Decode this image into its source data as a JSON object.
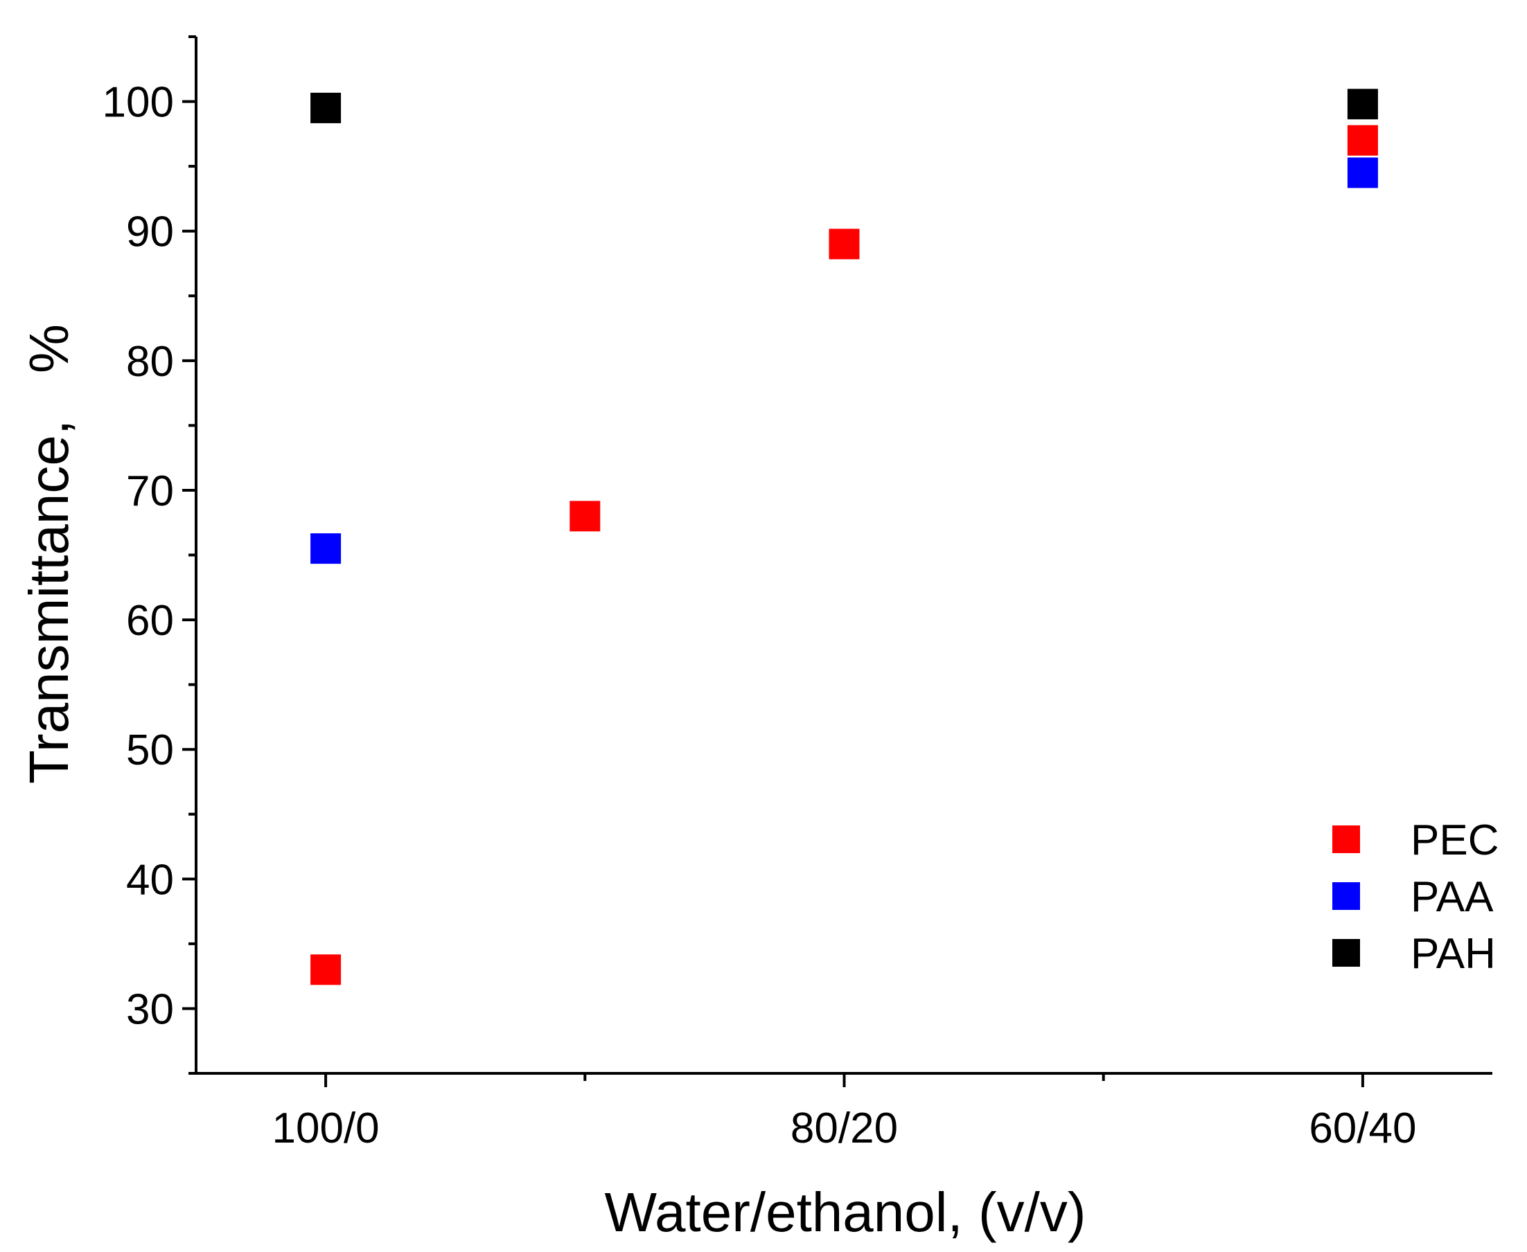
{
  "chart_data": {
    "type": "scatter",
    "title": "",
    "xlabel": "Water/ethanol, (v/v)",
    "ylabel": "Transmittance,   %",
    "xlim": [
      0.5,
      5.5
    ],
    "ylim": [
      25,
      105
    ],
    "x_ticks": [
      {
        "x": 1,
        "label": "100/0"
      },
      {
        "x": 3,
        "label": "80/20"
      },
      {
        "x": 5,
        "label": "60/40"
      }
    ],
    "x_minor_ticks": [
      2,
      4
    ],
    "y_ticks": [
      30,
      40,
      50,
      60,
      70,
      80,
      90,
      100
    ],
    "y_minor_ticks": [
      25,
      35,
      45,
      55,
      65,
      75,
      85,
      95,
      105
    ],
    "legend_position": "bottom-right",
    "series": [
      {
        "name": "PEC",
        "color": "#ff0000",
        "points": [
          {
            "x": 1,
            "y": 33
          },
          {
            "x": 2,
            "y": 68
          },
          {
            "x": 3,
            "y": 89
          },
          {
            "x": 5,
            "y": 97
          }
        ]
      },
      {
        "name": "PAA",
        "color": "#0000ff",
        "points": [
          {
            "x": 1,
            "y": 65.5
          },
          {
            "x": 5,
            "y": 94.5
          }
        ]
      },
      {
        "name": "PAH",
        "color": "#000000",
        "points": [
          {
            "x": 1,
            "y": 99.5
          },
          {
            "x": 5,
            "y": 99.8
          }
        ]
      }
    ]
  }
}
